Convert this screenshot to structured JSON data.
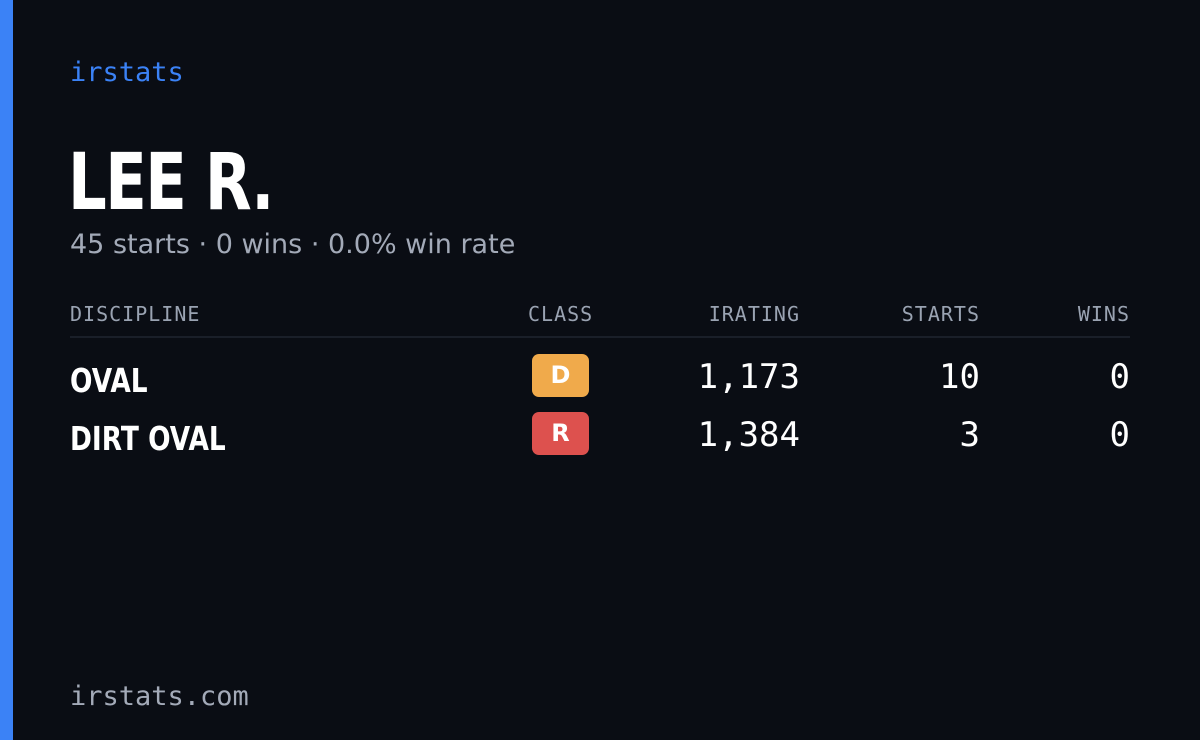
{
  "brand": "irstats",
  "driver": {
    "name": "LEE R.",
    "starts": "45 starts",
    "wins": "0 wins",
    "win_rate": "0.0% win rate",
    "separator": "·"
  },
  "table": {
    "headers": {
      "discipline": "DISCIPLINE",
      "class": "CLASS",
      "irating": "IRATING",
      "starts": "STARTS",
      "wins": "WINS"
    },
    "rows": [
      {
        "discipline": "OVAL",
        "class": "D",
        "class_color": "#f0aa4b",
        "irating": "1,173",
        "starts": "10",
        "wins": "0"
      },
      {
        "discipline": "DIRT OVAL",
        "class": "R",
        "class_color": "#dd514e",
        "irating": "1,384",
        "starts": "3",
        "wins": "0"
      }
    ]
  },
  "footer": "irstats.com",
  "colors": {
    "background": "#0a0d14",
    "accent": "#3b82f6",
    "muted_text": "#a3aab8",
    "header_text": "#9aa3b2"
  }
}
